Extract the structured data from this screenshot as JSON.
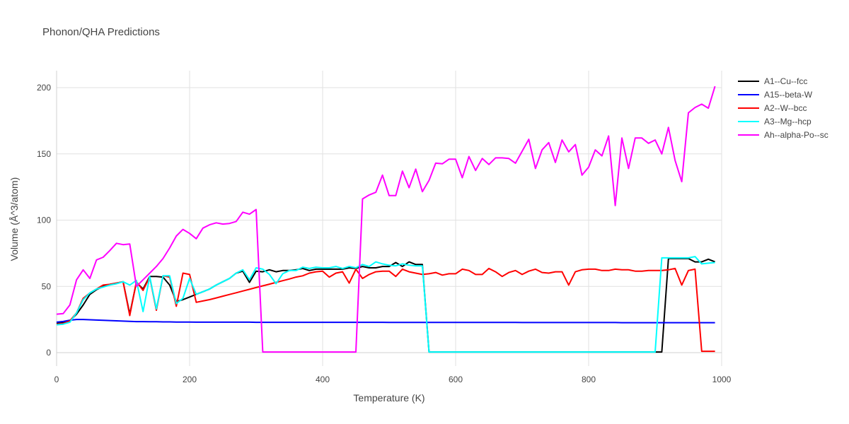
{
  "chart_data": {
    "type": "line",
    "title": "Phonon/QHA Predictions",
    "xlabel": "Temperature (K)",
    "ylabel": "Volume (Å^3/atom)",
    "xlim": [
      0,
      1000
    ],
    "ylim": [
      -10,
      212
    ],
    "xticks": [
      0,
      200,
      400,
      600,
      800,
      1000
    ],
    "yticks": [
      0,
      50,
      100,
      150,
      200
    ],
    "grid": true,
    "legend_position": "right",
    "x": [
      0,
      10,
      20,
      30,
      40,
      50,
      60,
      70,
      80,
      90,
      100,
      110,
      120,
      130,
      140,
      150,
      160,
      170,
      180,
      190,
      200,
      210,
      220,
      230,
      240,
      250,
      260,
      270,
      280,
      290,
      300,
      310,
      320,
      330,
      340,
      350,
      360,
      370,
      380,
      390,
      400,
      410,
      420,
      430,
      440,
      450,
      460,
      470,
      480,
      490,
      500,
      510,
      520,
      530,
      540,
      550,
      560,
      570,
      580,
      590,
      600,
      610,
      620,
      630,
      640,
      650,
      660,
      670,
      680,
      690,
      700,
      710,
      720,
      730,
      740,
      750,
      760,
      770,
      780,
      790,
      800,
      810,
      820,
      830,
      840,
      850,
      860,
      870,
      880,
      890,
      900,
      910,
      920,
      930,
      940,
      950,
      960,
      970,
      980,
      990
    ],
    "series": [
      {
        "name": "A1--Cu--fcc",
        "color": "#000000",
        "values": [
          22,
          22.5,
          24,
          29,
          36,
          44,
          47.5,
          50,
          51.5,
          52.5,
          53.5,
          29,
          53,
          48,
          57.5,
          57.5,
          57,
          51,
          38.5,
          40,
          42,
          44,
          46,
          48,
          51,
          53.5,
          56,
          60,
          61.5,
          53,
          61.5,
          61,
          62.5,
          61,
          62,
          62,
          62.5,
          63.5,
          62,
          63,
          63,
          63,
          63,
          63,
          64,
          63.5,
          65,
          64,
          64,
          65,
          65,
          68,
          65,
          68.5,
          66.5,
          66.5,
          0.5,
          0.5,
          0.5,
          0.5,
          0.5,
          0.5,
          0.5,
          0.5,
          0.5,
          0.5,
          0.5,
          0.5,
          0.5,
          0.5,
          0.5,
          0.5,
          0.5,
          0.5,
          0.5,
          0.5,
          0.5,
          0.5,
          0.5,
          0.5,
          0.5,
          0.5,
          0.5,
          0.5,
          0.5,
          0.5,
          0.5,
          0.5,
          0.5,
          0.5,
          0.5,
          0.5,
          71,
          71,
          71,
          71,
          68.5,
          68.5,
          70.5,
          68.5
        ]
      },
      {
        "name": "A15--beta-W",
        "color": "#0000ff",
        "values": [
          23,
          23.5,
          24.5,
          25,
          25,
          24.8,
          24.6,
          24.4,
          24.2,
          24,
          23.8,
          23.6,
          23.4,
          23.4,
          23.3,
          23.3,
          23.2,
          23.2,
          23.1,
          23.1,
          23.1,
          23.0,
          23.0,
          23.0,
          23.0,
          23.0,
          23.0,
          23.0,
          23.0,
          23.0,
          22.9,
          22.9,
          22.9,
          22.9,
          22.9,
          22.9,
          22.9,
          22.9,
          22.9,
          22.9,
          22.9,
          22.9,
          22.9,
          22.9,
          22.9,
          22.9,
          22.9,
          22.9,
          22.9,
          22.9,
          22.8,
          22.8,
          22.8,
          22.8,
          22.8,
          22.8,
          22.8,
          22.8,
          22.8,
          22.8,
          22.8,
          22.8,
          22.8,
          22.8,
          22.8,
          22.8,
          22.8,
          22.8,
          22.8,
          22.8,
          22.7,
          22.7,
          22.7,
          22.7,
          22.7,
          22.7,
          22.7,
          22.7,
          22.7,
          22.7,
          22.7,
          22.7,
          22.7,
          22.7,
          22.7,
          22.6,
          22.6,
          22.6,
          22.6,
          22.6,
          22.6,
          22.6,
          22.6,
          22.6,
          22.6,
          22.6,
          22.6,
          22.6,
          22.6,
          22.6
        ]
      },
      {
        "name": "A2--W--bcc",
        "color": "#ff0000",
        "values": [
          21.5,
          22,
          24,
          30,
          41,
          45,
          48,
          51,
          51.5,
          52.5,
          53.5,
          28,
          53.5,
          47,
          57,
          32,
          58,
          57,
          35,
          60,
          59,
          38,
          39,
          40,
          41.3,
          42.6,
          43.9,
          45.2,
          46.5,
          47.8,
          49.1,
          50.4,
          51.7,
          53,
          54.3,
          55.6,
          57,
          58,
          60,
          61,
          61.5,
          57,
          60,
          61,
          52.5,
          63,
          56,
          59,
          61,
          61.5,
          61.5,
          57.5,
          63,
          61,
          60,
          59,
          59.5,
          60.5,
          58.5,
          59.5,
          59.5,
          63,
          62,
          59,
          59,
          63.5,
          61,
          57.5,
          60.5,
          62,
          59,
          61.5,
          63,
          60.5,
          60,
          61,
          61,
          51,
          61,
          62.5,
          63,
          63,
          62,
          62,
          63,
          62.5,
          62.5,
          61.5,
          61.5,
          62,
          62,
          62,
          62.5,
          63.5,
          51,
          62,
          63,
          1,
          1,
          1
        ]
      },
      {
        "name": "A3--Mg--hcp",
        "color": "#00ffff",
        "values": [
          21,
          21.5,
          23,
          30,
          40,
          45,
          48,
          49.5,
          51,
          52,
          53.5,
          51,
          54.5,
          31,
          57.5,
          33,
          58,
          58,
          37,
          41,
          56,
          44,
          46,
          48,
          51,
          53.5,
          56,
          60,
          62.5,
          55,
          64,
          63,
          59,
          52,
          59.5,
          62,
          62,
          64.5,
          63.5,
          64.5,
          64,
          64,
          65,
          63.5,
          65,
          64,
          66.5,
          65,
          68.5,
          67,
          66,
          65.5,
          67,
          66,
          65.5,
          65.5,
          0.5,
          0.5,
          0.5,
          0.5,
          0.5,
          0.5,
          0.5,
          0.5,
          0.5,
          0.5,
          0.5,
          0.5,
          0.5,
          0.5,
          0.5,
          0.5,
          0.5,
          0.5,
          0.5,
          0.5,
          0.5,
          0.5,
          0.5,
          0.5,
          0.5,
          0.5,
          0.5,
          0.5,
          0.5,
          0.5,
          0.5,
          0.5,
          0.5,
          0.5,
          0.5,
          71.5,
          71.5,
          71.5,
          71.5,
          71.5,
          72.5,
          67,
          67.5,
          68
        ]
      },
      {
        "name": "Ah--alpha-Po--sc",
        "color": "#ff00ff",
        "values": [
          29,
          29.5,
          36,
          55,
          62.5,
          56,
          70,
          72,
          77,
          82.5,
          81.5,
          82,
          50,
          55,
          60,
          65,
          71,
          79,
          88,
          93,
          90,
          86,
          94,
          96.5,
          98,
          97,
          97.5,
          99,
          106,
          104.5,
          108,
          0.5,
          0.5,
          0.5,
          0.5,
          0.5,
          0.5,
          0.5,
          0.5,
          0.5,
          0.5,
          0.5,
          0.5,
          0.5,
          0.5,
          0.5,
          116,
          119,
          121,
          134,
          118.5,
          118.5,
          137,
          124.5,
          138.5,
          121.5,
          130,
          143,
          142.5,
          146,
          146,
          132,
          148,
          137.5,
          146.5,
          142,
          147,
          147,
          146.5,
          143,
          152,
          161,
          139,
          153,
          158.5,
          143.5,
          160.5,
          151.5,
          157,
          134,
          140,
          153,
          148.5,
          163.5,
          111,
          162,
          139,
          162,
          162,
          158,
          160.5,
          150,
          170,
          145,
          129,
          181,
          185,
          187.5,
          184.5,
          201
        ]
      }
    ]
  }
}
